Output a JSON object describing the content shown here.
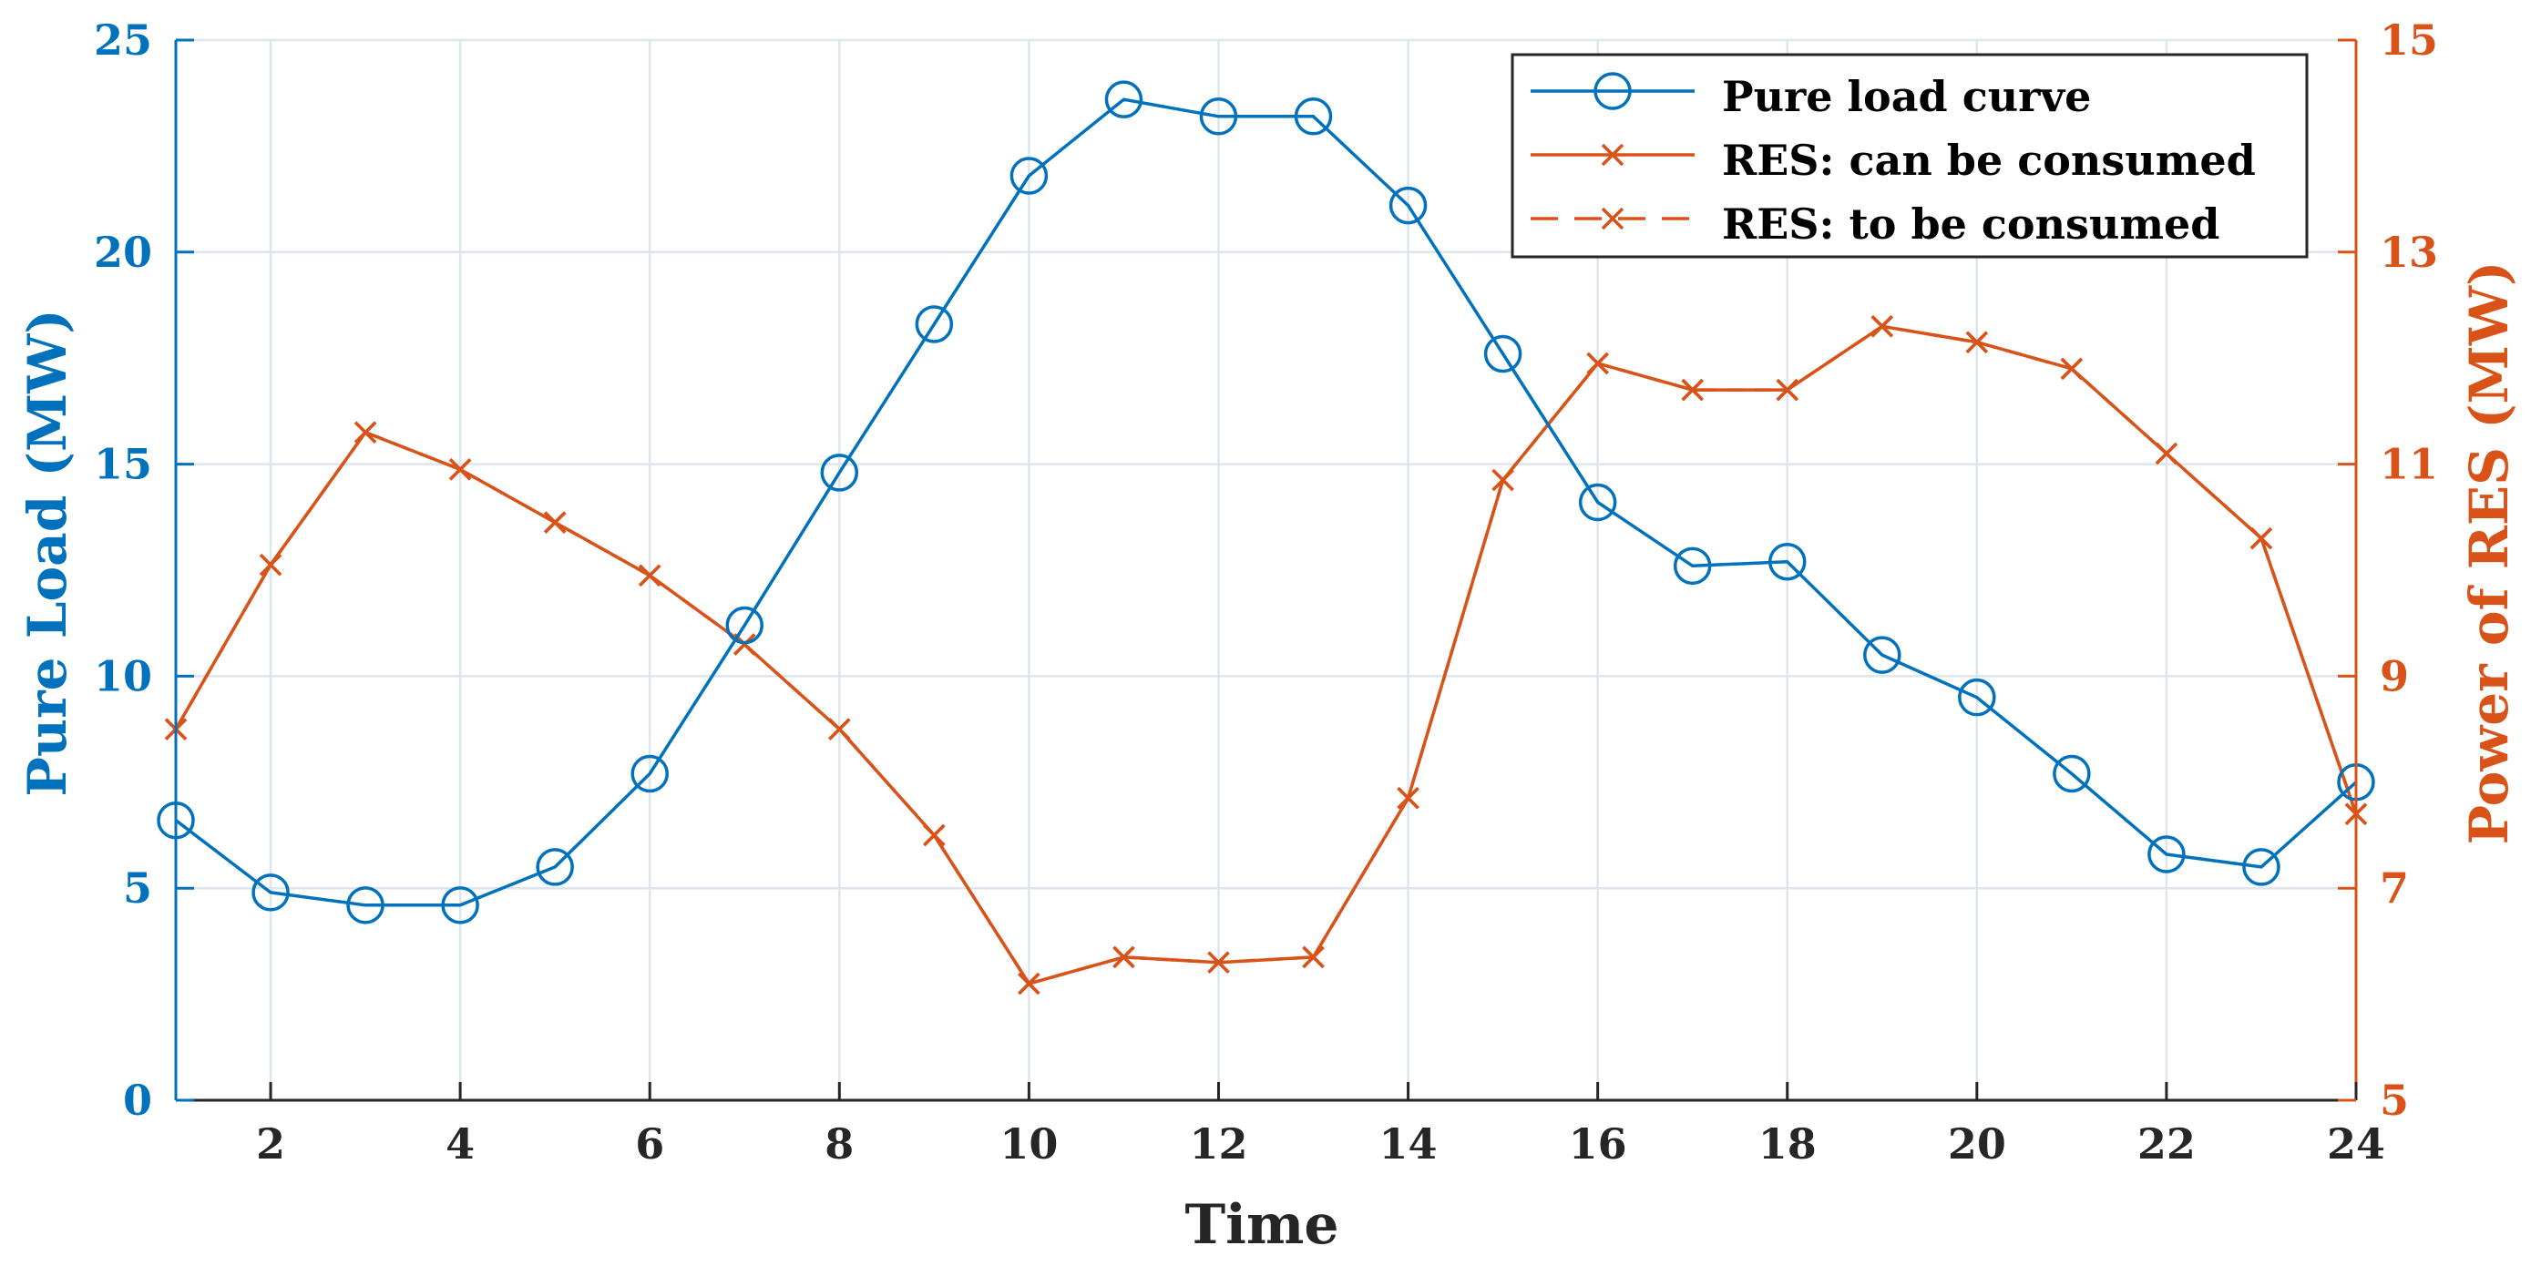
{
  "chart_data": {
    "type": "line",
    "title": "",
    "xlabel": "Time",
    "ylabel_left": "Pure Load (MW)",
    "ylabel_right": "Power of RES (MW)",
    "x": [
      1,
      2,
      3,
      4,
      5,
      6,
      7,
      8,
      9,
      10,
      11,
      12,
      13,
      14,
      15,
      16,
      17,
      18,
      19,
      20,
      21,
      22,
      23,
      24
    ],
    "x_ticks": [
      2,
      4,
      6,
      8,
      10,
      12,
      14,
      16,
      18,
      20,
      22,
      24
    ],
    "xlim": [
      1,
      24
    ],
    "ylim_left": [
      0,
      25
    ],
    "yticks_left": [
      0,
      5,
      10,
      15,
      20,
      25
    ],
    "ylim_right": [
      5,
      15
    ],
    "yticks_right": [
      5,
      7,
      9,
      11,
      13,
      15
    ],
    "grid": true,
    "legend_position": "top-right",
    "colors": {
      "left_axis": "#0072BD",
      "right_axis": "#D95319",
      "grid": "#DDE6EE",
      "text": "#262626"
    },
    "series": [
      {
        "name": "Pure load curve",
        "axis": "left",
        "color": "#0072BD",
        "marker": "circle",
        "line_style": "solid",
        "values": [
          6.6,
          4.9,
          4.6,
          4.6,
          5.5,
          7.7,
          11.2,
          14.8,
          18.3,
          21.8,
          23.6,
          23.2,
          23.2,
          21.1,
          17.6,
          14.1,
          12.6,
          12.7,
          10.5,
          9.5,
          7.7,
          5.8,
          5.5,
          7.5
        ]
      },
      {
        "name": "RES: can be consumed",
        "axis": "right",
        "color": "#D95319",
        "marker": "x",
        "line_style": "solid",
        "values": [
          8.5,
          10.05,
          11.3,
          10.95,
          10.45,
          9.95,
          9.3,
          8.5,
          7.5,
          6.1,
          6.35,
          6.3,
          6.35,
          7.85,
          10.85,
          11.95,
          11.7,
          11.7,
          12.3,
          12.15,
          11.9,
          11.1,
          10.3,
          7.7
        ]
      },
      {
        "name": "RES: to be consumed",
        "axis": "right",
        "color": "#D95319",
        "marker": "x",
        "line_style": "dashed",
        "values": [
          8.5,
          10.05,
          11.3,
          10.95,
          10.45,
          9.95,
          9.3,
          8.5,
          7.5,
          6.1,
          6.35,
          6.3,
          6.35,
          7.85,
          10.85,
          11.95,
          11.7,
          11.7,
          12.3,
          12.15,
          11.9,
          11.1,
          10.3,
          7.7
        ]
      }
    ]
  }
}
